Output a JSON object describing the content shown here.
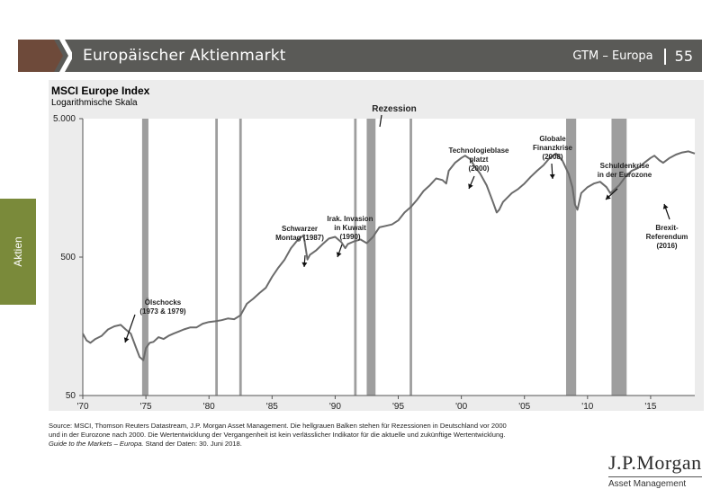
{
  "header": {
    "title": "Europäischer Aktienmarkt",
    "section": "GTM – Europa",
    "page": "55"
  },
  "side_tab": {
    "label": "Aktien"
  },
  "colors": {
    "header_bg": "#5a5a57",
    "accent": "#6e4a3a",
    "side_tab": "#7a8a3a",
    "panel": "#ececec",
    "line": "#6b6b6b",
    "recession": "#9e9e9e"
  },
  "chart_data": {
    "type": "line",
    "title": "MSCI Europe Index",
    "subtitle": "Logarithmische Skala",
    "y_scale": "log",
    "ylim": [
      50,
      5000
    ],
    "y_ticks": [
      5000,
      500,
      50
    ],
    "y_tick_labels": [
      "5.000",
      "500",
      "50"
    ],
    "xlim": [
      1970,
      2018.5
    ],
    "x_ticks": [
      1970,
      1975,
      1980,
      1985,
      1990,
      1995,
      2000,
      2005,
      2010,
      2015
    ],
    "x_tick_labels": [
      "'70",
      "'75",
      "'80",
      "'85",
      "'90",
      "'95",
      "'00",
      "'05",
      "'10",
      "'15"
    ],
    "recession_label": "Rezession",
    "recessions": [
      [
        1974.7,
        1975.2
      ],
      [
        1980.5,
        1980.7
      ],
      [
        1982.4,
        1982.6
      ],
      [
        1991.5,
        1991.7
      ],
      [
        1992.5,
        1993.2
      ],
      [
        1995.9,
        1996.1
      ],
      [
        2008.3,
        2009.1
      ],
      [
        2011.9,
        2013.1
      ]
    ],
    "series": [
      {
        "x": [
          1970.0,
          1970.3,
          1970.6,
          1971.0,
          1971.5,
          1972.0,
          1972.5,
          1973.0,
          1973.4,
          1973.8,
          1974.2,
          1974.5,
          1974.8,
          1975.0,
          1975.3,
          1975.6,
          1976.0,
          1976.4,
          1976.8,
          1977.2,
          1977.6,
          1978.0,
          1978.5,
          1979.0,
          1979.5,
          1980.0,
          1980.5,
          1981.0,
          1981.5,
          1982.0,
          1982.5,
          1983.0,
          1983.5,
          1984.0,
          1984.5,
          1985.0,
          1985.5,
          1986.0,
          1986.5,
          1987.0,
          1987.5,
          1987.8,
          1988.0,
          1988.5,
          1989.0,
          1989.5,
          1990.0,
          1990.5,
          1990.8,
          1991.0,
          1991.5,
          1992.0,
          1992.5,
          1993.0,
          1993.5,
          1994.0,
          1994.5,
          1995.0,
          1995.5,
          1996.0,
          1996.5,
          1997.0,
          1997.5,
          1998.0,
          1998.5,
          1998.8,
          1999.0,
          1999.5,
          2000.0,
          2000.3,
          2000.7,
          2001.0,
          2001.5,
          2002.0,
          2002.5,
          2002.8,
          2003.0,
          2003.3,
          2004.0,
          2004.5,
          2005.0,
          2005.5,
          2006.0,
          2006.5,
          2007.0,
          2007.5,
          2008.0,
          2008.5,
          2008.8,
          2009.0,
          2009.2,
          2009.5,
          2010.0,
          2010.5,
          2011.0,
          2011.5,
          2011.8,
          2012.0,
          2012.5,
          2013.0,
          2013.5,
          2014.0,
          2014.5,
          2015.0,
          2015.3,
          2015.7,
          2016.0,
          2016.5,
          2017.0,
          2017.5,
          2018.0,
          2018.5
        ],
        "values": [
          140,
          125,
          120,
          128,
          135,
          150,
          158,
          162,
          150,
          140,
          112,
          95,
          90,
          110,
          120,
          122,
          132,
          128,
          135,
          140,
          145,
          150,
          155,
          155,
          165,
          170,
          172,
          175,
          180,
          178,
          190,
          230,
          250,
          275,
          300,
          360,
          420,
          480,
          580,
          660,
          720,
          480,
          520,
          560,
          620,
          680,
          700,
          640,
          580,
          620,
          650,
          670,
          630,
          700,
          820,
          840,
          860,
          920,
          1050,
          1150,
          1300,
          1500,
          1650,
          1850,
          1800,
          1700,
          2100,
          2400,
          2600,
          2700,
          2550,
          2300,
          2000,
          1650,
          1250,
          1050,
          1100,
          1250,
          1450,
          1550,
          1700,
          1900,
          2100,
          2300,
          2600,
          2800,
          2500,
          2000,
          1600,
          1200,
          1100,
          1450,
          1600,
          1700,
          1750,
          1600,
          1450,
          1500,
          1650,
          1900,
          2100,
          2200,
          2400,
          2600,
          2700,
          2500,
          2400,
          2600,
          2750,
          2850,
          2900,
          2800
        ]
      }
    ],
    "annotations": [
      {
        "lines": [
          "Ölschocks",
          "(1973 & 1979)"
        ]
      },
      {
        "lines": [
          "Schwarzer",
          "Montag (1987)"
        ]
      },
      {
        "lines": [
          "Irak. Invasion",
          "in Kuwait",
          "(1990)"
        ]
      },
      {
        "lines": [
          "Technologieblase",
          "platzt",
          "(2000)"
        ]
      },
      {
        "lines": [
          "Globale",
          "Finanzkrise",
          "(2008)"
        ]
      },
      {
        "lines": [
          "Schuldenkrise",
          "in der Eurozone"
        ]
      },
      {
        "lines": [
          "Brexit-",
          "Referendum",
          "(2016)"
        ]
      }
    ]
  },
  "footnote": {
    "line1": "Source: MSCI, Thomson Reuters Datastream, J.P. Morgan Asset Management. Die hellgrauen Balken stehen für Rezessionen in Deutschland vor 2000",
    "line2": "und in der Eurozone nach 2000. Die Wertentwicklung der Vergangenheit ist kein verlässlicher Indikator für die aktuelle und zukünftige Wertentwicklung.",
    "line3_em": "Guide to the Markets – Europa.",
    "line3_rest": " Stand der Daten: 30. Juni 2018."
  },
  "logo": {
    "main": "J.P.Morgan",
    "sub": "Asset Management"
  }
}
